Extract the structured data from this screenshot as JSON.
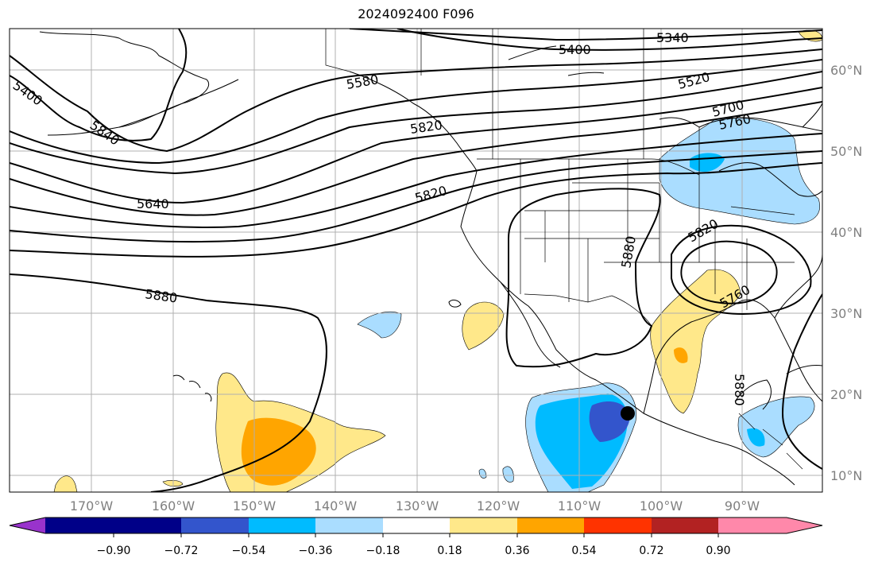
{
  "title": "2024092400 F096",
  "map": {
    "lon_labels": [
      "170°W",
      "160°W",
      "150°W",
      "140°W",
      "130°W",
      "120°W",
      "110°W",
      "100°W",
      "90°W"
    ],
    "lat_labels": [
      "60°N",
      "50°N",
      "40°N",
      "30°N",
      "20°N",
      "10°N"
    ],
    "contour_labels": [
      "5340",
      "5400",
      "5400",
      "5520",
      "5580",
      "5700",
      "5760",
      "5840",
      "5820",
      "5640",
      "5820",
      "5880",
      "5880",
      "5760",
      "5820",
      "5880"
    ]
  },
  "colorbar": {
    "tick_labels": [
      "−0.90",
      "−0.72",
      "−0.54",
      "−0.36",
      "−0.18",
      "0.18",
      "0.36",
      "0.54",
      "0.72",
      "0.90"
    ],
    "colors": [
      "#9933cc",
      "#000088",
      "#3355cc",
      "#00bbff",
      "#aaddff",
      "#ffffff",
      "#ffe88a",
      "#ffa500",
      "#ff3300",
      "#b22222",
      "#ff88aa"
    ]
  }
}
